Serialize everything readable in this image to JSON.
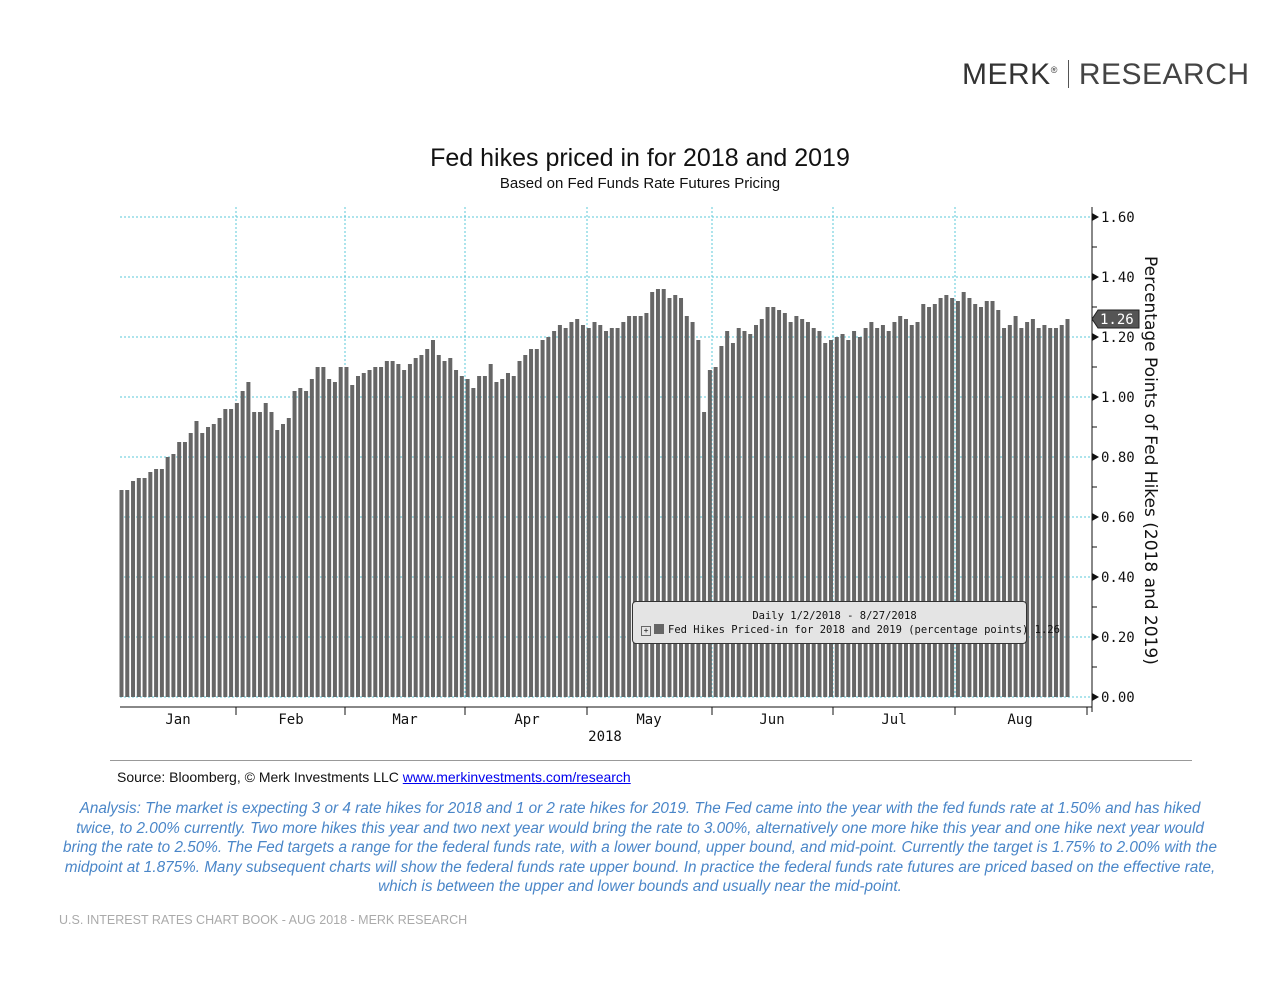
{
  "brand": {
    "name": "MERK",
    "mark": "®",
    "section": "RESEARCH"
  },
  "chart_data": {
    "type": "bar",
    "title": "Fed hikes priced in for 2018 and 2019",
    "subtitle": "Based on Fed Funds Rate Futures Pricing",
    "xlabel": "2018",
    "ylabel": "Percentage Points of Fed Hikes (2018 and 2019)",
    "x_range": "1/2/2018 - 8/27/2018",
    "frequency": "Daily",
    "x_tick_labels": [
      "Jan",
      "Feb",
      "Mar",
      "Apr",
      "May",
      "Jun",
      "Jul",
      "Aug"
    ],
    "y_tick_labels": [
      "0.00",
      "0.20",
      "0.40",
      "0.60",
      "0.80",
      "1.00",
      "1.20",
      "1.40",
      "1.60"
    ],
    "ylim": [
      0,
      1.6
    ],
    "y_axis_side": "right",
    "grid": true,
    "grid_color": "#5bc8d8",
    "bar_color": "#666666",
    "last_value_label": "1.26",
    "legend": {
      "header": "Daily 1/2/2018 - 8/27/2018",
      "entry": "Fed Hikes Priced-in for 2018 and 2019 (percentage points)",
      "value": "1.26",
      "placement": "bottom-right"
    },
    "series": [
      {
        "name": "Fed Hikes Priced-in for 2018 and 2019 (percentage points)",
        "values": [
          0.69,
          0.69,
          0.72,
          0.73,
          0.73,
          0.75,
          0.76,
          0.76,
          0.8,
          0.81,
          0.85,
          0.85,
          0.88,
          0.92,
          0.88,
          0.9,
          0.91,
          0.93,
          0.96,
          0.96,
          0.98,
          1.02,
          1.05,
          0.95,
          0.95,
          0.98,
          0.95,
          0.89,
          0.91,
          0.93,
          1.02,
          1.03,
          1.02,
          1.06,
          1.1,
          1.1,
          1.06,
          1.05,
          1.1,
          1.1,
          1.04,
          1.07,
          1.08,
          1.09,
          1.1,
          1.1,
          1.12,
          1.12,
          1.11,
          1.09,
          1.11,
          1.13,
          1.14,
          1.16,
          1.19,
          1.14,
          1.12,
          1.13,
          1.09,
          1.07,
          1.06,
          1.03,
          1.07,
          1.07,
          1.11,
          1.05,
          1.06,
          1.08,
          1.07,
          1.12,
          1.14,
          1.16,
          1.16,
          1.19,
          1.2,
          1.22,
          1.24,
          1.23,
          1.25,
          1.26,
          1.24,
          1.23,
          1.25,
          1.24,
          1.22,
          1.23,
          1.23,
          1.25,
          1.27,
          1.27,
          1.27,
          1.28,
          1.35,
          1.36,
          1.36,
          1.33,
          1.34,
          1.33,
          1.27,
          1.25,
          1.19,
          0.95,
          1.09,
          1.1,
          1.17,
          1.22,
          1.18,
          1.23,
          1.22,
          1.21,
          1.24,
          1.26,
          1.3,
          1.3,
          1.29,
          1.28,
          1.25,
          1.27,
          1.26,
          1.25,
          1.23,
          1.22,
          1.18,
          1.19,
          1.2,
          1.21,
          1.19,
          1.22,
          1.2,
          1.23,
          1.25,
          1.23,
          1.24,
          1.22,
          1.25,
          1.27,
          1.26,
          1.24,
          1.25,
          1.31,
          1.3,
          1.31,
          1.33,
          1.34,
          1.33,
          1.32,
          1.35,
          1.33,
          1.31,
          1.3,
          1.32,
          1.32,
          1.29,
          1.23,
          1.24,
          1.27,
          1.23,
          1.25,
          1.26,
          1.23,
          1.24,
          1.23,
          1.23,
          1.24,
          1.26
        ]
      }
    ]
  },
  "source": {
    "text": "Source: Bloomberg, © Merk Investments LLC ",
    "link": "www.merkinvestments.com/research"
  },
  "analysis": "Analysis: The market is expecting 3 or 4 rate hikes for 2018 and 1 or 2 rate hikes for 2019. The Fed came into the year with the fed funds rate at 1.50% and has hiked twice, to 2.00% currently. Two more hikes this year and two next year would bring the rate to 3.00%, alternatively one more hike this year and one hike next year would bring the rate to 2.50%. The Fed targets a range for the federal funds rate, with a lower bound, upper bound, and mid-point. Currently the target is 1.75% to 2.00% with the midpoint at 1.875%. Many subsequent charts will show the federal funds rate upper bound. In practice the federal funds rate futures are priced based on the effective rate, which is between the upper and lower bounds and usually near the mid-point.",
  "footer": "U.S. INTEREST RATES CHART BOOK - AUG 2018 - MERK RESEARCH"
}
